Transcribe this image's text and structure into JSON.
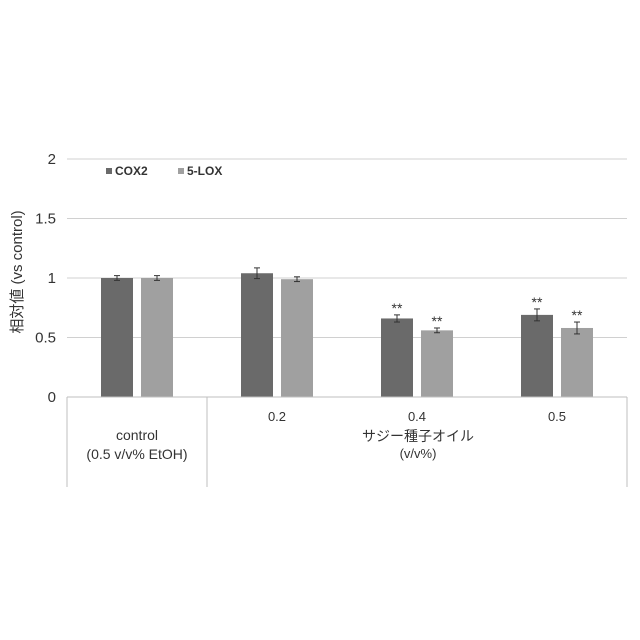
{
  "chart_data": {
    "type": "bar",
    "ylabel": "相対値 (vs control)",
    "ylim": [
      0,
      2
    ],
    "yticks": [
      "0",
      "0.5",
      "1",
      "1.5",
      "2"
    ],
    "grid": true,
    "legend_position": "top-left",
    "categories": [
      "",
      "0.2",
      "0.4",
      "0.5"
    ],
    "group_labels": {
      "control_line1": "control",
      "control_line2": "(0.5 v/v% EtOH)",
      "treatment_line1": "サジー種子オイル",
      "treatment_line2": "(v/v%)"
    },
    "series": [
      {
        "name": "COX2",
        "color": "#6a6a6a",
        "values": [
          1.0,
          1.04,
          0.66,
          0.69
        ],
        "errors": [
          0.02,
          0.045,
          0.03,
          0.05
        ],
        "significance": [
          "",
          "",
          "**",
          "**"
        ]
      },
      {
        "name": "5-LOX",
        "color": "#a0a0a0",
        "values": [
          1.0,
          0.99,
          0.56,
          0.58
        ],
        "errors": [
          0.02,
          0.02,
          0.02,
          0.05
        ],
        "significance": [
          "",
          "",
          "**",
          "**"
        ]
      }
    ]
  }
}
